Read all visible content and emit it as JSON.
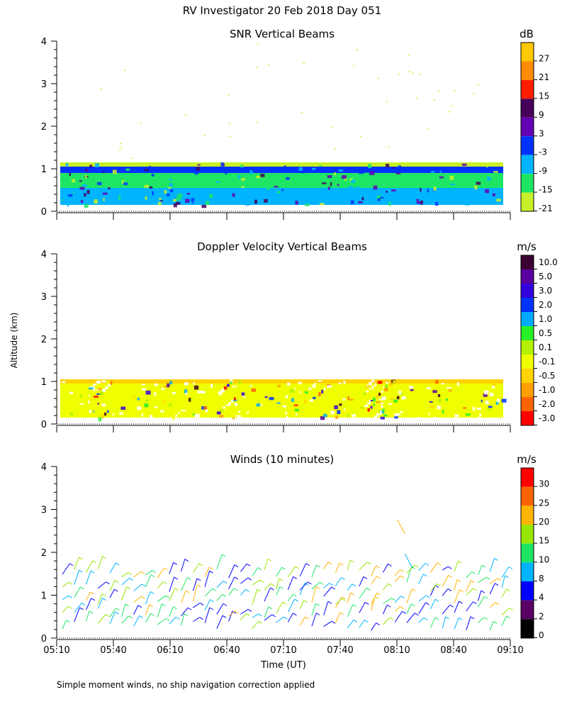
{
  "figure": {
    "title": "RV Investigator  20 Feb 2018 Day 051",
    "ylabel": "Altitude (km)",
    "xlabel": "Time (UT)",
    "footnote": "Simple moment winds, no ship navigation correction applied"
  },
  "chart_data": [
    {
      "type": "heatmap",
      "title": "SNR Vertical Beams",
      "ylabel": "Altitude (km)",
      "ylim": [
        0,
        4
      ],
      "yticks": [
        "0",
        "1",
        "2",
        "3",
        "4"
      ],
      "x_range": [
        "05:10",
        "09:10"
      ],
      "colorbar": {
        "unit": "dB",
        "labels": [
          "27",
          "21",
          "15",
          "9",
          "3",
          "-3",
          "-9",
          "-15",
          "-21"
        ],
        "colors": [
          "#ffc800",
          "#ff8c00",
          "#ff1e00",
          "#46005a",
          "#6400b4",
          "#0032ff",
          "#00b4ff",
          "#1ee664",
          "#c8f028"
        ]
      },
      "layers": [
        {
          "from_km": 0.15,
          "to_km": 0.55,
          "color": "#00b4ff",
          "label": "-9"
        },
        {
          "from_km": 0.55,
          "to_km": 0.9,
          "color": "#1ee664",
          "label": "-15"
        },
        {
          "from_km": 0.9,
          "to_km": 1.05,
          "color": "#0032ff",
          "label": "-3"
        },
        {
          "from_km": 1.05,
          "to_km": 1.15,
          "color": "#c8f028",
          "label": "-21"
        }
      ]
    },
    {
      "type": "heatmap",
      "title": "Doppler Velocity Vertical Beams",
      "ylabel": "Altitude (km)",
      "ylim": [
        0,
        4
      ],
      "yticks": [
        "0",
        "1",
        "2",
        "3",
        "4"
      ],
      "x_range": [
        "05:10",
        "09:10"
      ],
      "colorbar": {
        "unit": "m/s",
        "labels": [
          "10.0",
          "5.0",
          "3.0",
          "2.0",
          "1.0",
          "0.5",
          "0.1",
          "-0.1",
          "-0.5",
          "-1.0",
          "-2.0",
          "-3.0"
        ],
        "colors": [
          "#3c0032",
          "#5a00a0",
          "#3200dc",
          "#0032ff",
          "#00aaff",
          "#28f028",
          "#b4f000",
          "#f0ff00",
          "#ffd200",
          "#ffa000",
          "#ff6400",
          "#ff0000"
        ]
      },
      "layers": [
        {
          "from_km": 0.15,
          "to_km": 0.95,
          "color": "#f0ff00",
          "label": "-0.1"
        },
        {
          "from_km": 0.95,
          "to_km": 1.05,
          "color": "#ffd200",
          "label": "-0.5"
        }
      ]
    },
    {
      "type": "scatter",
      "title": "Winds (10 minutes)",
      "ylabel": "Altitude (km)",
      "ylim": [
        0,
        4
      ],
      "yticks": [
        "0",
        "1",
        "2",
        "3",
        "4"
      ],
      "x_range": [
        "05:10",
        "09:10"
      ],
      "colorbar": {
        "unit": "m/s",
        "labels": [
          "30",
          "25",
          "20",
          "15",
          "10",
          "8",
          "4",
          "2",
          "0"
        ],
        "colors": [
          "#ff0000",
          "#ff6400",
          "#ffb400",
          "#96e600",
          "#1ee664",
          "#00b4ff",
          "#0000ff",
          "#5a0064",
          "#000000"
        ]
      },
      "wind_altitudes_km": [
        0.3,
        0.6,
        0.9,
        1.2,
        1.5
      ],
      "upper_barbs": [
        {
          "time": "08:12",
          "alt_km": 2.6,
          "color": "#ffb400"
        },
        {
          "time": "08:16",
          "alt_km": 1.8,
          "color": "#00b4ff"
        }
      ]
    }
  ],
  "time_axis": {
    "ticks": [
      "05:10",
      "05:40",
      "06:10",
      "06:40",
      "07:10",
      "07:40",
      "08:10",
      "08:40",
      "09:10"
    ]
  }
}
